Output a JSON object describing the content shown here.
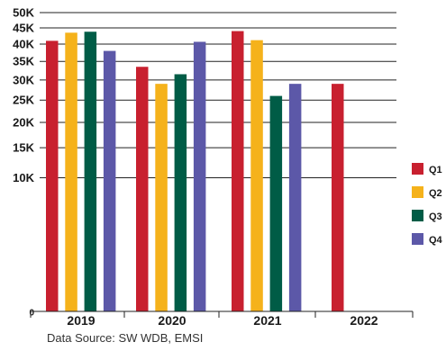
{
  "chart_data": {
    "type": "bar",
    "categories": [
      "2019",
      "2020",
      "2021",
      "2022"
    ],
    "series": [
      {
        "name": "Q1",
        "color": "#c8202f",
        "values": [
          41000,
          33500,
          44000,
          29000
        ]
      },
      {
        "name": "Q2",
        "color": "#f5b21b",
        "values": [
          43500,
          29000,
          41200,
          null
        ]
      },
      {
        "name": "Q3",
        "color": "#005c46",
        "values": [
          43800,
          31500,
          26000,
          null
        ]
      },
      {
        "name": "Q4",
        "color": "#5c58a8",
        "values": [
          38000,
          40700,
          29000,
          null
        ]
      }
    ],
    "y_ticks": [
      0,
      10000,
      15000,
      20000,
      25000,
      30000,
      35000,
      40000,
      45000,
      50000
    ],
    "y_tick_labels": [
      "0",
      "10K",
      "15K",
      "20K",
      "25K",
      "30K",
      "35K",
      "40K",
      "45K",
      "50K"
    ],
    "y_scale": "sqrt",
    "ylim": [
      0,
      50000
    ],
    "grid": true,
    "legend_position": "right",
    "title": "",
    "xlabel": "",
    "ylabel": ""
  },
  "source_text": "Data Source: SW WDB, EMSI"
}
